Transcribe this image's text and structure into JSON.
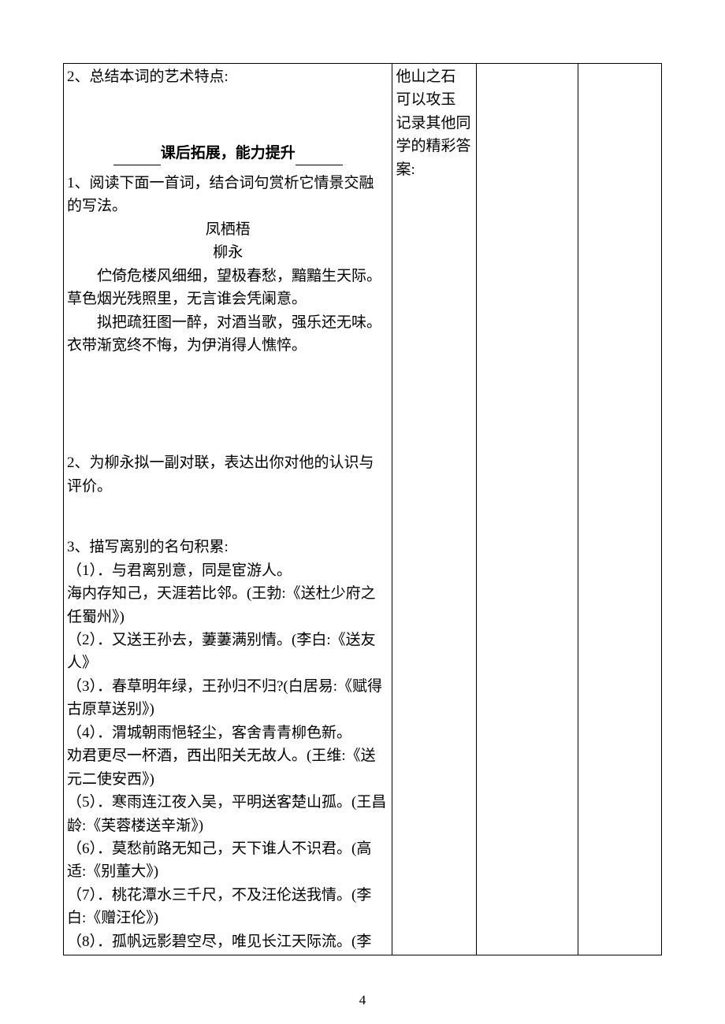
{
  "main": {
    "q2_title": "2、总结本词的艺术特点:",
    "heading": "课后拓展，能力提升",
    "ex1_intro": "1、阅读下面一首词，结合词句赏析它情景交融的写法。",
    "poem_title": "凤栖梧",
    "poem_author": "柳永",
    "poem_line1": "伫倚危楼风细细，望极春愁，黯黯生天际。草色烟光残照里，无言谁会凭阑意。",
    "poem_line2": "拟把疏狂图一醉，对酒当歌，强乐还无味。衣带渐宽终不悔，为伊消得人憔悴。",
    "ex2": "2、为柳永拟一副对联，表达出你对他的认识与评价。",
    "ex3_title": "3、描写离别的名句积累:",
    "quotes": [
      "（1）．与君离别意，同是宦游人。",
      "海内存知己，天涯若比邻。(王勃:《送杜少府之任蜀州》)",
      "（2）．又送王孙去，萋萋满别情。(李白:《送友人》",
      "（3）．春草明年绿，王孙归不归?(白居易:《赋得古原草送别》)",
      "（4）．渭城朝雨悒轻尘，客舍青青柳色新。",
      "劝君更尽一杯酒，西出阳关无故人。(王维:《送元二使安西》)",
      "（5）．寒雨连江夜入吴，平明送客楚山孤。(王昌龄:《芙蓉楼送辛渐》)",
      "（6）．莫愁前路无知己，天下谁人不识君。(高适:《别董大》)",
      "（7）．桃花潭水三千尺，不及汪伦送我情。(李白:《赠汪伦》)",
      "（8）．孤帆远影碧空尽，唯见长江天际流。(李"
    ]
  },
  "note": {
    "line1": "他山之石",
    "line2": "可以攻玉",
    "line3": "记录其他同学的精彩答案:"
  },
  "page_number": "4"
}
